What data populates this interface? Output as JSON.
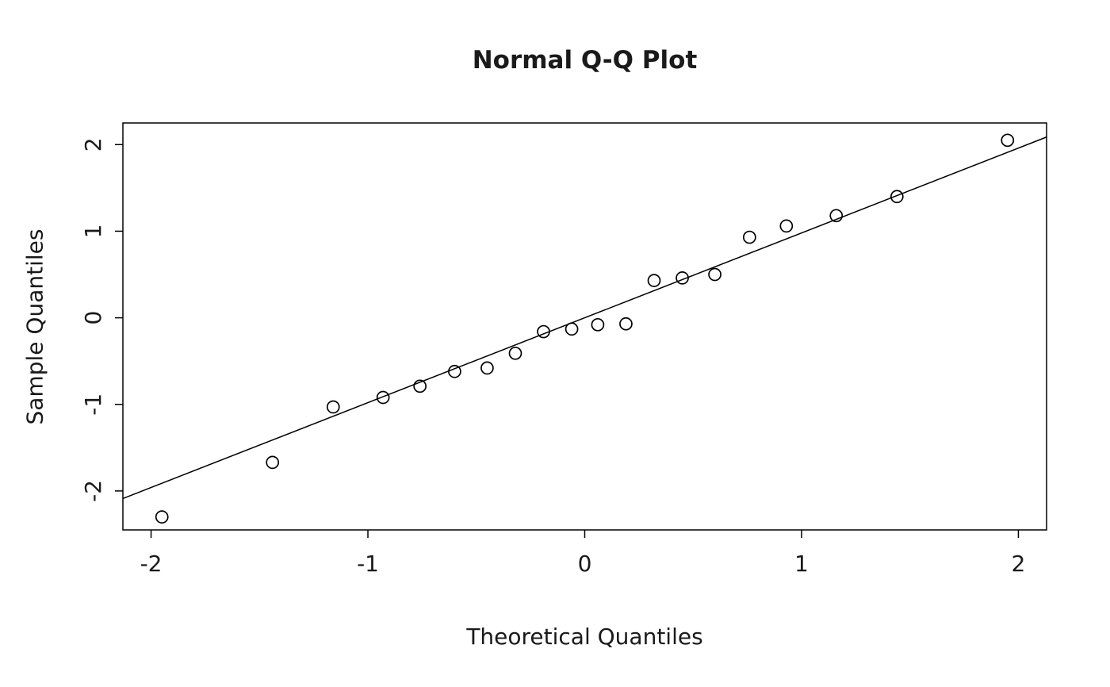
{
  "figure": {
    "title": "Normal Q-Q Plot",
    "xlabel": "Theoretical Quantiles",
    "ylabel": "Sample Quantiles"
  },
  "chart_data": {
    "type": "scatter",
    "title": "Normal Q-Q Plot",
    "xlabel": "Theoretical Quantiles",
    "ylabel": "Sample Quantiles",
    "xlim": [
      -2.13,
      2.13
    ],
    "ylim": [
      -2.45,
      2.25
    ],
    "x_ticks": [
      -2,
      -1,
      0,
      1,
      2
    ],
    "y_ticks": [
      -2,
      -1,
      0,
      1,
      2
    ],
    "grid": false,
    "legend": false,
    "background": "#ffffff",
    "point_style": {
      "marker": "open-circle",
      "color": "#000000"
    },
    "line_color": "#000000",
    "points": [
      {
        "x": -1.95,
        "y": -2.3
      },
      {
        "x": -1.44,
        "y": -1.67
      },
      {
        "x": -1.16,
        "y": -1.03
      },
      {
        "x": -0.93,
        "y": -0.92
      },
      {
        "x": -0.76,
        "y": -0.79
      },
      {
        "x": -0.6,
        "y": -0.62
      },
      {
        "x": -0.45,
        "y": -0.58
      },
      {
        "x": -0.32,
        "y": -0.41
      },
      {
        "x": -0.19,
        "y": -0.16
      },
      {
        "x": -0.06,
        "y": -0.13
      },
      {
        "x": 0.06,
        "y": -0.08
      },
      {
        "x": 0.19,
        "y": -0.07
      },
      {
        "x": 0.32,
        "y": 0.43
      },
      {
        "x": 0.45,
        "y": 0.46
      },
      {
        "x": 0.6,
        "y": 0.5
      },
      {
        "x": 0.76,
        "y": 0.93
      },
      {
        "x": 0.93,
        "y": 1.06
      },
      {
        "x": 1.16,
        "y": 1.18
      },
      {
        "x": 1.44,
        "y": 1.4
      },
      {
        "x": 1.95,
        "y": 2.05
      }
    ],
    "reference_line": {
      "slope": 0.98,
      "intercept": 0.0
    }
  }
}
